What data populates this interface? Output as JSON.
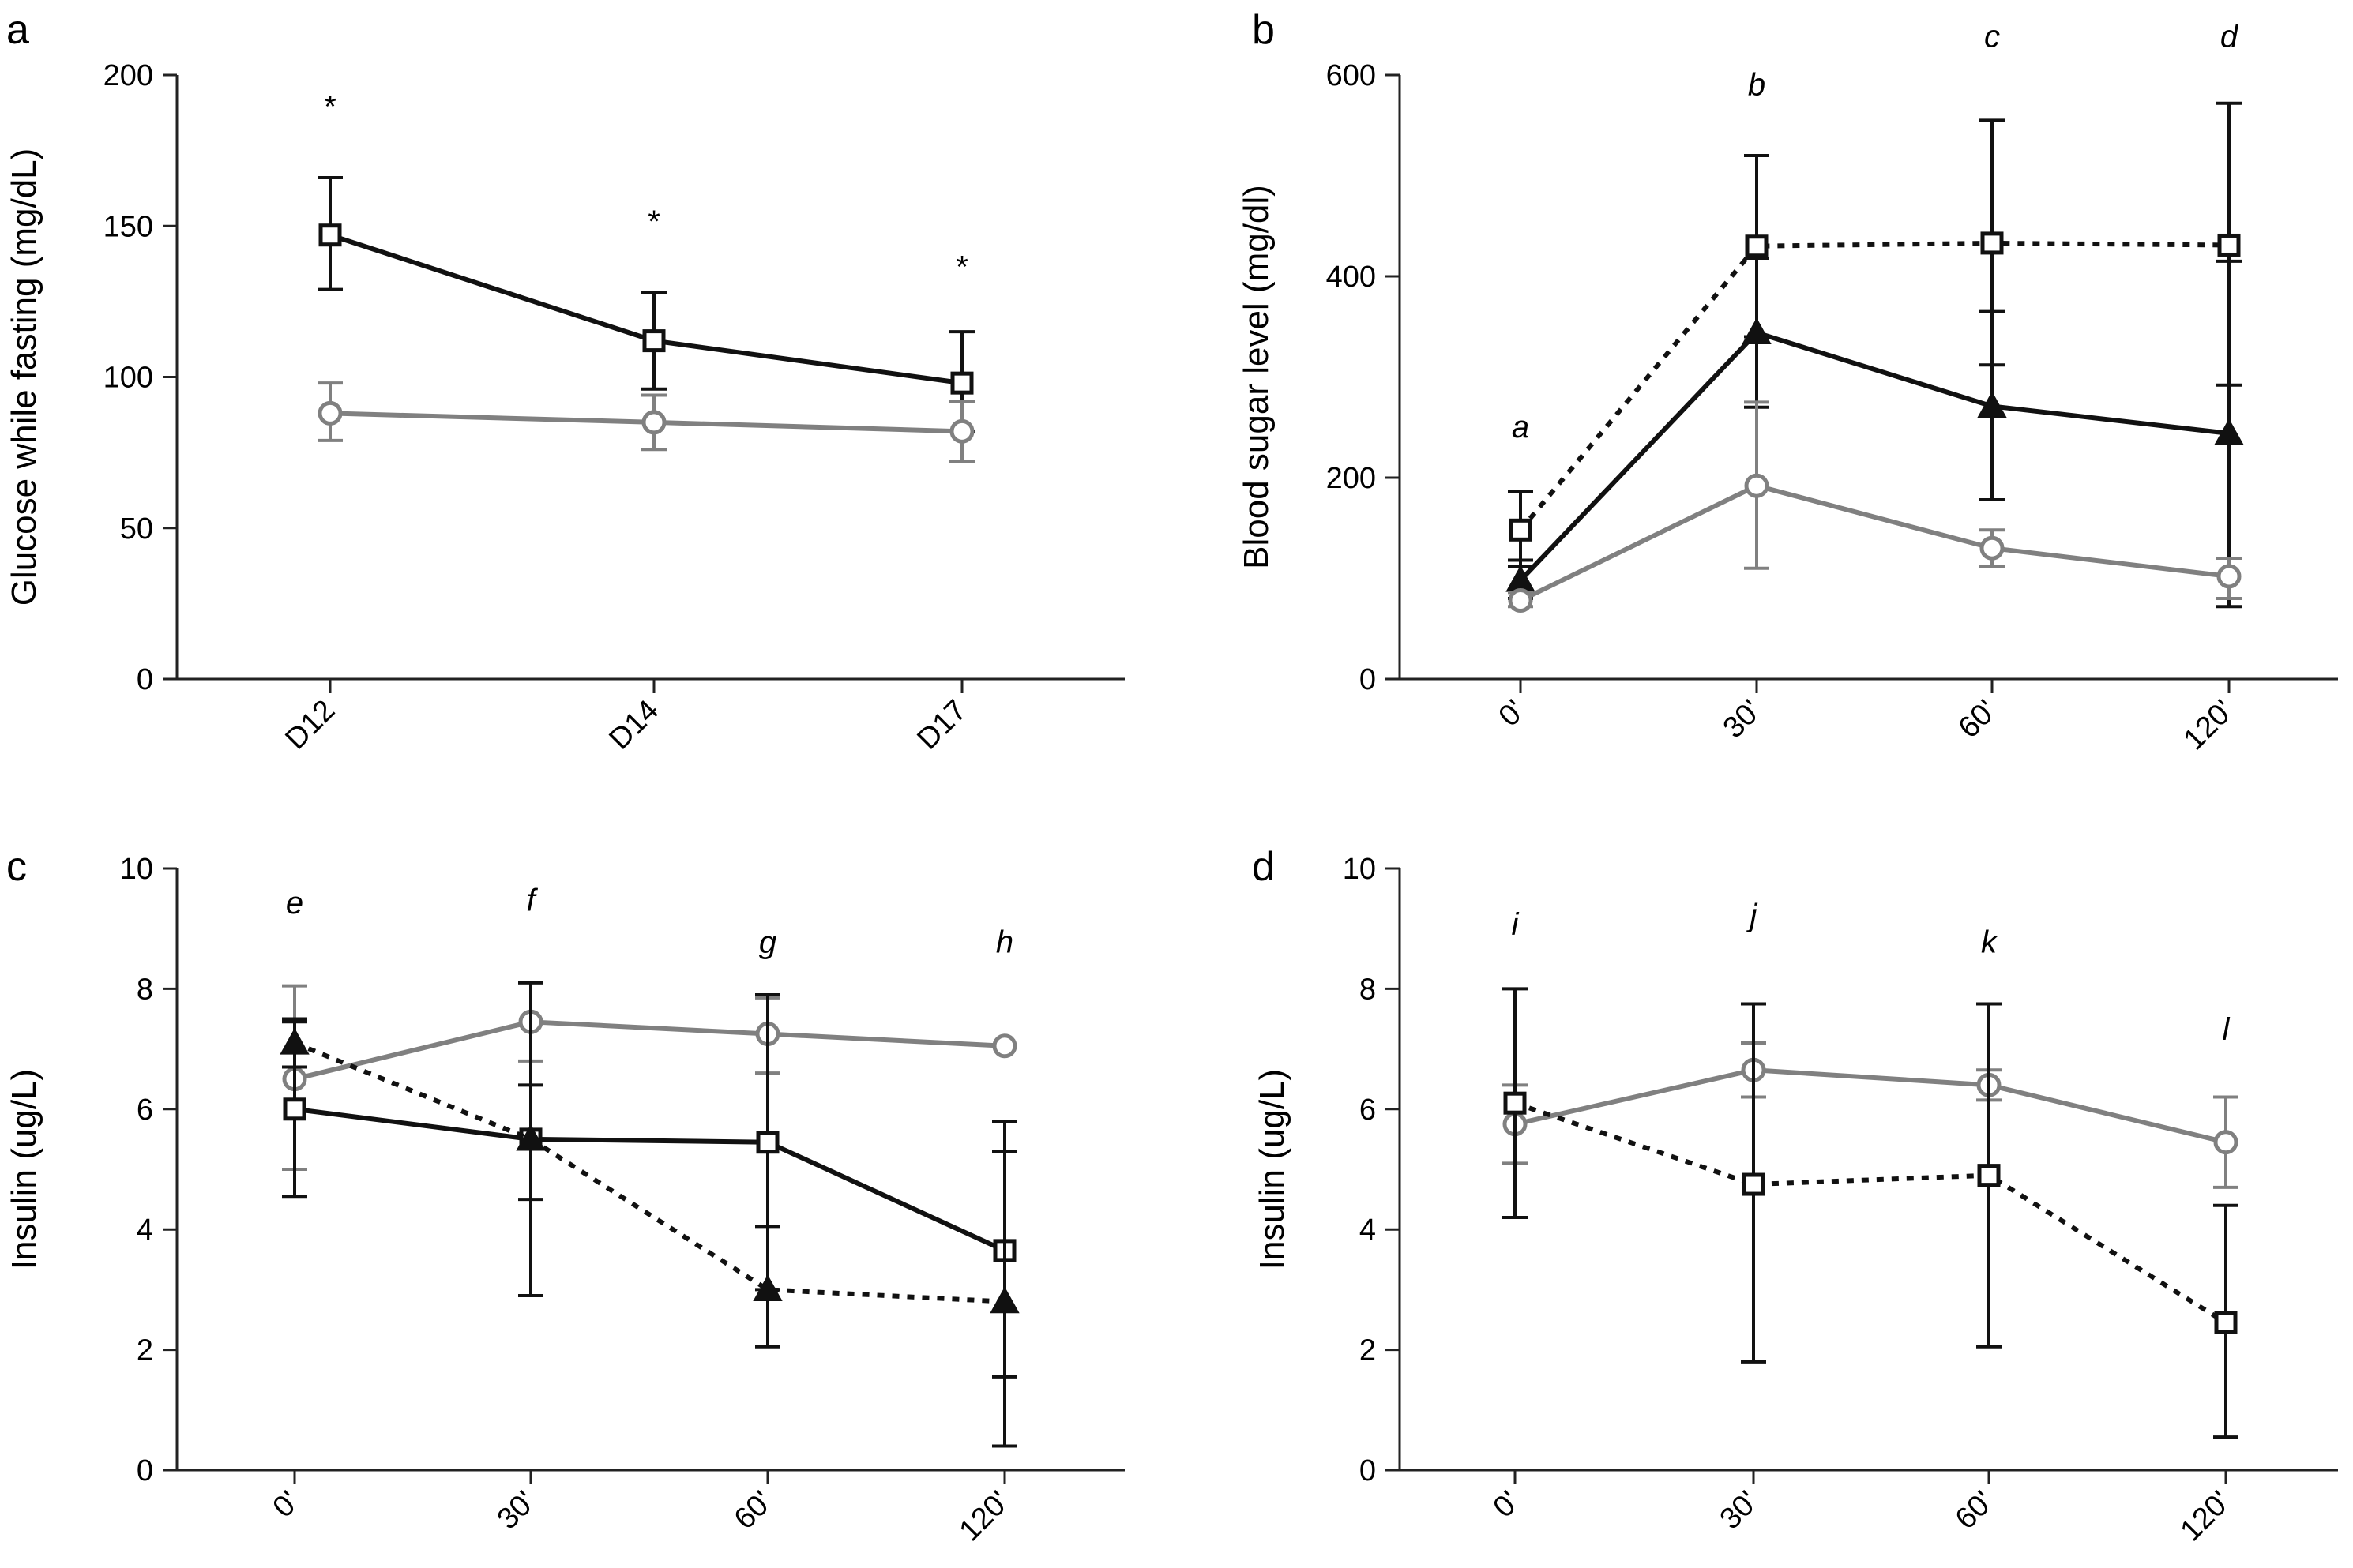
{
  "chart_data": [
    {
      "panel_label": "a",
      "type": "line",
      "ylabel": "Glucose while fasting (mg/dL)",
      "xlabel": "",
      "ylim": [
        0,
        200
      ],
      "yticks": [
        0,
        50,
        100,
        150,
        200
      ],
      "x": [
        "D12",
        "D14",
        "D17"
      ],
      "series": [
        {
          "marker": "square",
          "line": "solid",
          "color": "#111111",
          "values": [
            147,
            112,
            98
          ],
          "err_upper": [
            166,
            128,
            115
          ],
          "err_lower": [
            129,
            96,
            82
          ]
        },
        {
          "marker": "circle",
          "line": "solid",
          "color": "#808080",
          "values": [
            88,
            85,
            82
          ],
          "err_upper": [
            98,
            94,
            92
          ],
          "err_lower": [
            79,
            76,
            72
          ]
        }
      ],
      "annotations": [
        {
          "text": "*",
          "x": "D12",
          "y": 186,
          "italic": false
        },
        {
          "text": "*",
          "x": "D14",
          "y": 148,
          "italic": false
        },
        {
          "text": "*",
          "x": "D17",
          "y": 133,
          "italic": false
        }
      ]
    },
    {
      "panel_label": "b",
      "type": "line",
      "ylabel": "Blood sugar level (mg/dl)",
      "xlabel": "",
      "ylim": [
        0,
        600
      ],
      "yticks": [
        0,
        200,
        400,
        600
      ],
      "x": [
        "0'",
        "30'",
        "60'",
        "120'"
      ],
      "series": [
        {
          "marker": "square",
          "line": "dotted",
          "color": "#111111",
          "values": [
            148,
            430,
            433,
            431
          ],
          "err_upper": [
            186,
            520,
            555,
            572
          ],
          "err_lower": [
            112,
            340,
            312,
            292
          ]
        },
        {
          "marker": "triangle",
          "line": "solid",
          "color": "#111111",
          "values": [
            98,
            344,
            271,
            244
          ],
          "err_upper": [
            118,
            418,
            365,
            415
          ],
          "err_lower": [
            80,
            270,
            178,
            72
          ]
        },
        {
          "marker": "circle",
          "line": "solid",
          "color": "#808080",
          "values": [
            78,
            192,
            130,
            102
          ],
          "err_upper": [
            86,
            275,
            148,
            120
          ],
          "err_lower": [
            72,
            110,
            112,
            80
          ]
        }
      ],
      "annotations": [
        {
          "text": "a",
          "x": "0'",
          "y": 240,
          "italic": true
        },
        {
          "text": "b",
          "x": "30'",
          "y": 580,
          "italic": true
        },
        {
          "text": "c",
          "x": "60'",
          "y": 628,
          "italic": true
        },
        {
          "text": "d",
          "x": "120'",
          "y": 628,
          "italic": true
        }
      ]
    },
    {
      "panel_label": "c",
      "type": "line",
      "ylabel": "Insulin (ug/L)",
      "xlabel": "",
      "ylim": [
        0,
        10
      ],
      "yticks": [
        0,
        2,
        4,
        6,
        8,
        10
      ],
      "x": [
        "0'",
        "30'",
        "60'",
        "120'"
      ],
      "series": [
        {
          "marker": "circle",
          "line": "solid",
          "color": "#808080",
          "values": [
            6.5,
            7.45,
            7.25,
            7.05
          ],
          "err_upper": [
            8.05,
            8.1,
            7.85,
            null
          ],
          "err_lower": [
            5.0,
            6.8,
            6.6,
            null
          ]
        },
        {
          "marker": "square",
          "line": "solid",
          "color": "#111111",
          "values": [
            6.0,
            5.5,
            5.45,
            3.65
          ],
          "err_upper": [
            7.45,
            6.4,
            7.9,
            5.8
          ],
          "err_lower": [
            4.55,
            2.9,
            3.0,
            1.55
          ]
        },
        {
          "marker": "triangle",
          "line": "dotted",
          "color": "#111111",
          "values": [
            7.1,
            5.5,
            3.0,
            2.8
          ],
          "err_upper": [
            7.5,
            8.1,
            4.05,
            5.3
          ],
          "err_lower": [
            6.7,
            4.5,
            2.05,
            0.4
          ]
        }
      ],
      "annotations": [
        {
          "text": "e",
          "x": "0'",
          "y": 9.25,
          "italic": true
        },
        {
          "text": "f",
          "x": "30'",
          "y": 9.3,
          "italic": true
        },
        {
          "text": "g",
          "x": "60'",
          "y": 8.6,
          "italic": true
        },
        {
          "text": "h",
          "x": "120'",
          "y": 8.6,
          "italic": true
        }
      ]
    },
    {
      "panel_label": "d",
      "type": "line",
      "ylabel": "Insulin (ug/L)",
      "xlabel": "",
      "ylim": [
        0,
        10
      ],
      "yticks": [
        0,
        2,
        4,
        6,
        8,
        10
      ],
      "x": [
        "0'",
        "30'",
        "60'",
        "120'"
      ],
      "series": [
        {
          "marker": "circle",
          "line": "solid",
          "color": "#808080",
          "values": [
            5.75,
            6.65,
            6.4,
            5.45
          ],
          "err_upper": [
            6.4,
            7.1,
            6.65,
            6.2
          ],
          "err_lower": [
            5.1,
            6.2,
            6.15,
            4.7
          ]
        },
        {
          "marker": "square",
          "line": "dotted",
          "color": "#111111",
          "values": [
            6.1,
            4.75,
            4.9,
            2.45
          ],
          "err_upper": [
            8.0,
            7.75,
            7.75,
            4.4
          ],
          "err_lower": [
            4.2,
            1.8,
            2.05,
            0.55
          ]
        }
      ],
      "annotations": [
        {
          "text": "i",
          "x": "0'",
          "y": 8.9,
          "italic": true
        },
        {
          "text": "j",
          "x": "30'",
          "y": 9.05,
          "italic": true
        },
        {
          "text": "k",
          "x": "60'",
          "y": 8.6,
          "italic": true
        },
        {
          "text": "l",
          "x": "120'",
          "y": 7.15,
          "italic": true
        }
      ]
    }
  ]
}
